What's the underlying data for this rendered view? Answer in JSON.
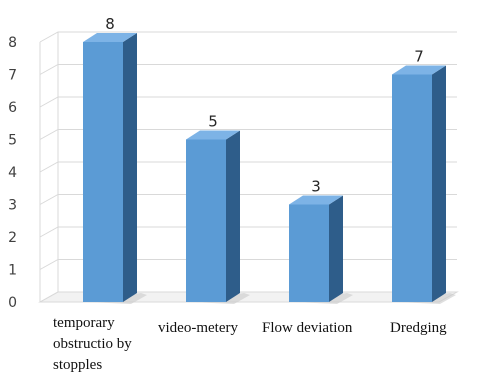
{
  "chart_data": {
    "type": "bar",
    "categories": [
      "temporary obstructio by stopples",
      "video-metery",
      "Flow deviation",
      "Dredging"
    ],
    "values": [
      8,
      5,
      3,
      7
    ],
    "ylim": [
      0,
      8
    ],
    "yticks": [
      "0",
      "1",
      "2",
      "3",
      "4",
      "5",
      "6",
      "7",
      "8"
    ],
    "grid": true,
    "style": "3d-column",
    "colors": {
      "front": "#5b9bd5",
      "side": "#2e5d8a",
      "top": "#7db3e6",
      "grid": "#d9d9d9"
    }
  }
}
